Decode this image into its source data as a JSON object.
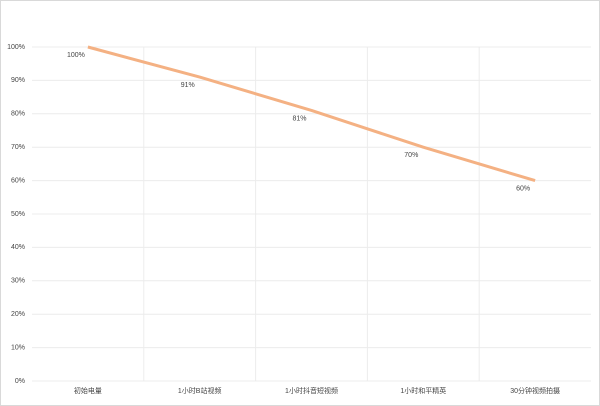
{
  "chart_data": {
    "type": "line",
    "categories": [
      "初始电量",
      "1小时B站视频",
      "1小时抖音短视频",
      "1小时和平精英",
      "30分钟视频拍摄"
    ],
    "series": [
      {
        "color": "#f4b183",
        "values": [
          100,
          91,
          81,
          70,
          60
        ],
        "value_labels": [
          "100%",
          "91%",
          "81%",
          "70%",
          "60%"
        ]
      }
    ],
    "ylim": [
      0,
      100
    ],
    "yticks": [
      {
        "value": 0,
        "label": "0%"
      },
      {
        "value": 10,
        "label": "10%"
      },
      {
        "value": 20,
        "label": "20%"
      },
      {
        "value": 30,
        "label": "30%"
      },
      {
        "value": 40,
        "label": "40%"
      },
      {
        "value": 50,
        "label": "50%"
      },
      {
        "value": 60,
        "label": "60%"
      },
      {
        "value": 70,
        "label": "70%"
      },
      {
        "value": 80,
        "label": "80%"
      },
      {
        "value": 90,
        "label": "90%"
      },
      {
        "value": 100,
        "label": "100%"
      }
    ],
    "grid": true
  }
}
